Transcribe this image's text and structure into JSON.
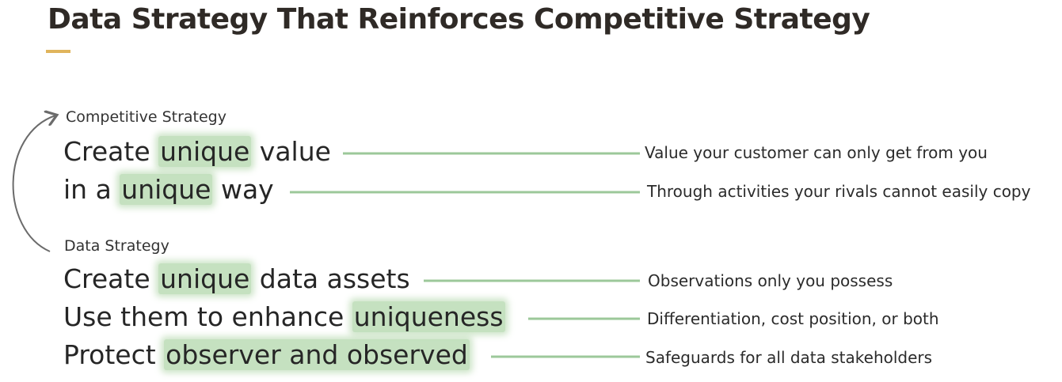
{
  "title": "Data Strategy That Reinforces Competitive Strategy",
  "colors": {
    "accent": "#e0b45c",
    "highlight": "#96c88c",
    "connector": "#9cc89a",
    "arrow": "#6b6b6b"
  },
  "competitive": {
    "label": "Competitive Strategy",
    "lines": [
      {
        "pre": "Create ",
        "hl": "unique",
        "post": " value",
        "desc": "Value your customer can only get from you"
      },
      {
        "pre": "in a ",
        "hl": "unique",
        "post": " way",
        "desc": "Through activities your rivals cannot easily copy"
      }
    ]
  },
  "data": {
    "label": "Data Strategy",
    "lines": [
      {
        "pre": "Create ",
        "hl": "unique",
        "post": " data assets",
        "desc": "Observations only you possess"
      },
      {
        "pre": "Use them to enhance ",
        "hl": "uniqueness",
        "post": "",
        "desc": "Differentiation, cost position, or both"
      },
      {
        "pre": "Protect ",
        "hl": "observer and observed",
        "post": "",
        "desc": "Safeguards for all data stakeholders"
      }
    ]
  }
}
